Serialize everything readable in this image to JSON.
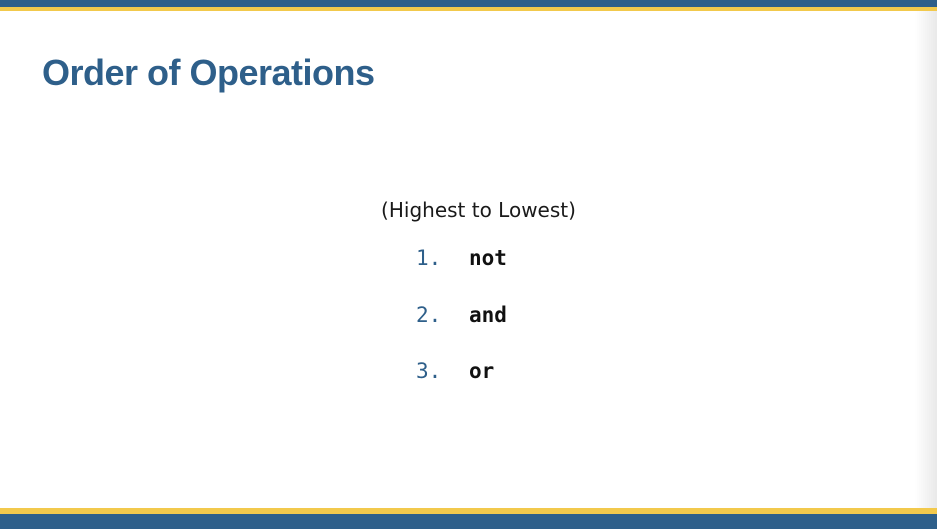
{
  "slide": {
    "title": "Order of Operations",
    "subtitle": "(Highest to Lowest)",
    "operations": [
      {
        "number": "1.",
        "keyword": "not"
      },
      {
        "number": "2.",
        "keyword": "and"
      },
      {
        "number": "3.",
        "keyword": "or"
      }
    ]
  },
  "colors": {
    "brand_blue": "#2e5f8a",
    "accent_yellow": "#f2c94c"
  }
}
